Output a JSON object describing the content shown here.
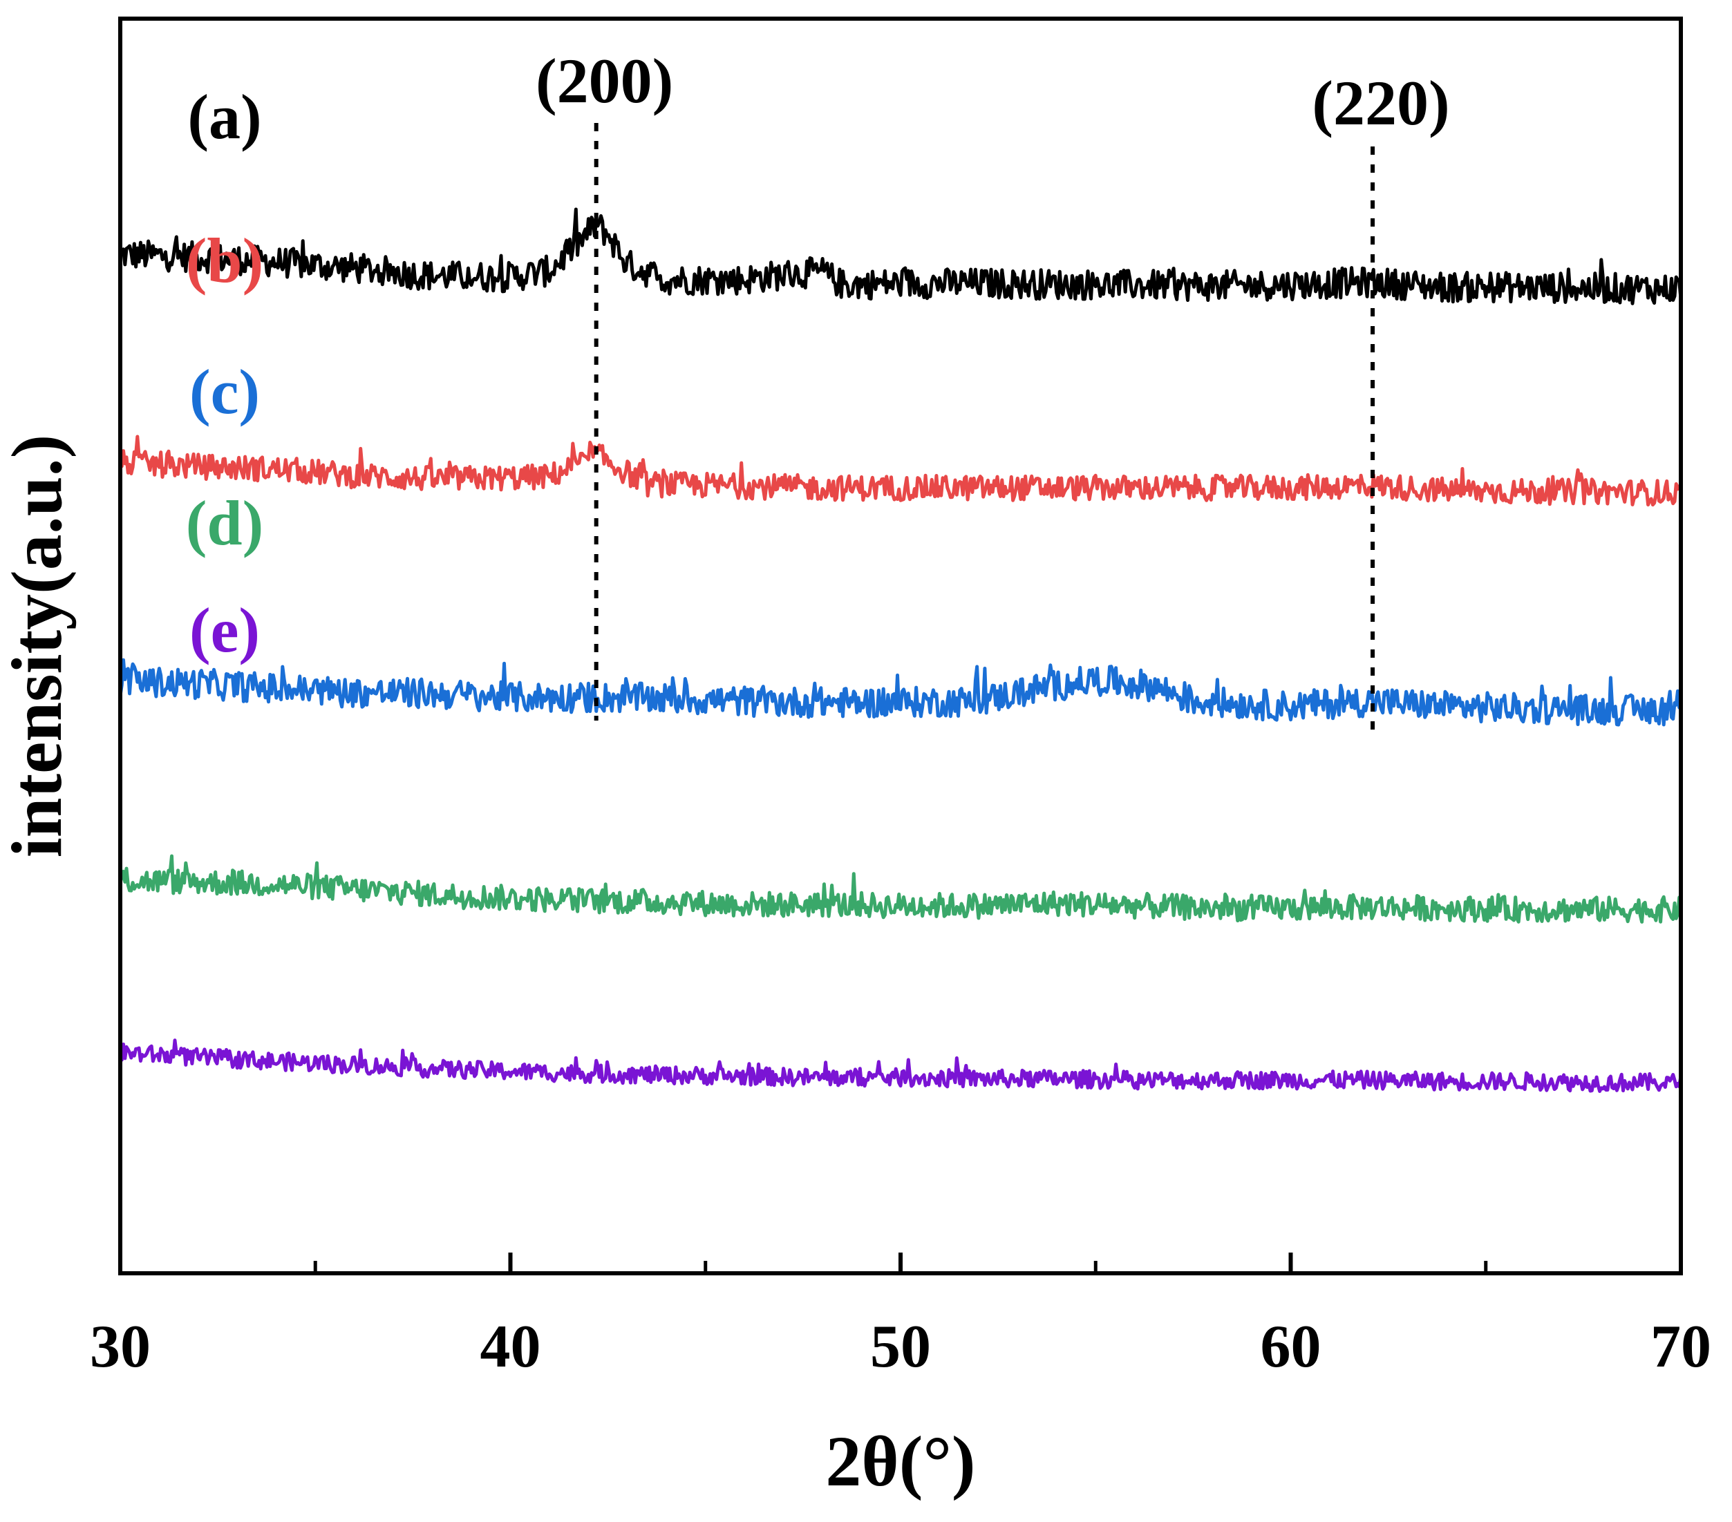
{
  "chart_data": {
    "type": "line",
    "title": "",
    "xlabel": "2θ(°)",
    "ylabel": "intensity(a.u.)",
    "xlim": [
      30,
      70
    ],
    "ylim": [
      0,
      100
    ],
    "xticks": [
      30,
      40,
      50,
      60,
      70
    ],
    "x_minor_ticks": [
      35,
      45,
      55,
      65
    ],
    "xtick_labels": [
      "30",
      "40",
      "50",
      "60",
      "70"
    ],
    "grid": false,
    "legend": "none (inline series labels at left)",
    "annotations": [
      {
        "text": "(200)",
        "x": 42.2,
        "style": "dotted vertical line"
      },
      {
        "text": "(220)",
        "x": 62.1,
        "style": "dotted vertical line"
      }
    ],
    "series": [
      {
        "name": "(a)",
        "color": "#000000",
        "baseline_y": 81,
        "noise": 1.2,
        "x": [
          30,
          32,
          34,
          36,
          38,
          40,
          41,
          41.8,
          42.2,
          42.5,
          43,
          44,
          46,
          47,
          48,
          48.5,
          50,
          52,
          55,
          58,
          60,
          62,
          64,
          66,
          68,
          70
        ],
        "y": [
          81.2,
          81.0,
          80.6,
          80.1,
          79.5,
          79.4,
          79.9,
          82.3,
          83.6,
          82.8,
          80.4,
          79.2,
          79.2,
          79.6,
          79.8,
          78.8,
          78.9,
          78.9,
          78.8,
          78.7,
          78.8,
          79.0,
          78.6,
          78.6,
          78.5,
          78.5
        ]
      },
      {
        "name": "(b)",
        "color": "#e84848",
        "baseline_y": 64,
        "noise": 1.0,
        "x": [
          30,
          32,
          34,
          36,
          38,
          40,
          41,
          41.8,
          42.2,
          42.6,
          43.5,
          45,
          48,
          50,
          55,
          58,
          60,
          62,
          64,
          66,
          68,
          70
        ],
        "y": [
          64.6,
          64.3,
          64.1,
          63.6,
          63.3,
          63.4,
          63.5,
          64.6,
          65.3,
          64.5,
          62.9,
          62.8,
          62.6,
          62.6,
          62.6,
          62.6,
          62.6,
          62.8,
          62.4,
          62.3,
          62.3,
          62.2
        ]
      },
      {
        "name": "(c)",
        "color": "#1a6fd6",
        "baseline_y": 47,
        "noise": 1.2,
        "x": [
          30,
          32,
          34,
          36,
          38,
          40,
          42,
          44,
          46,
          48,
          50,
          52,
          53.5,
          55,
          56.5,
          57.5,
          60,
          62,
          64,
          66,
          68,
          70
        ],
        "y": [
          47.2,
          47.0,
          46.6,
          46.3,
          46.2,
          45.9,
          45.9,
          45.8,
          45.6,
          45.5,
          45.5,
          45.6,
          46.6,
          47.3,
          46.8,
          45.6,
          45.2,
          45.6,
          45.2,
          45.0,
          44.9,
          44.9
        ]
      },
      {
        "name": "(d)",
        "color": "#3aa86a",
        "baseline_y": 31,
        "noise": 1.0,
        "x": [
          30,
          32,
          34,
          36,
          38,
          40,
          42,
          44,
          46,
          48,
          50,
          52,
          54,
          56,
          58,
          60,
          62,
          64,
          66,
          68,
          70
        ],
        "y": [
          31.3,
          31.2,
          31.0,
          30.6,
          30.2,
          29.9,
          29.7,
          29.6,
          29.4,
          29.4,
          29.3,
          29.3,
          29.5,
          29.3,
          29.1,
          29.1,
          29.2,
          29.1,
          29.0,
          29.0,
          29.0
        ]
      },
      {
        "name": "(e)",
        "color": "#7a14d4",
        "baseline_y": 17,
        "noise": 0.7,
        "x": [
          30,
          32,
          34,
          36,
          38,
          40,
          42,
          44,
          46,
          48,
          50,
          52,
          54,
          56,
          58,
          60,
          62,
          64,
          66,
          68,
          70
        ],
        "y": [
          17.6,
          17.2,
          16.9,
          16.6,
          16.3,
          16.1,
          15.9,
          15.8,
          15.7,
          15.6,
          15.6,
          15.5,
          15.5,
          15.4,
          15.4,
          15.4,
          15.4,
          15.3,
          15.3,
          15.2,
          15.2
        ]
      }
    ]
  }
}
